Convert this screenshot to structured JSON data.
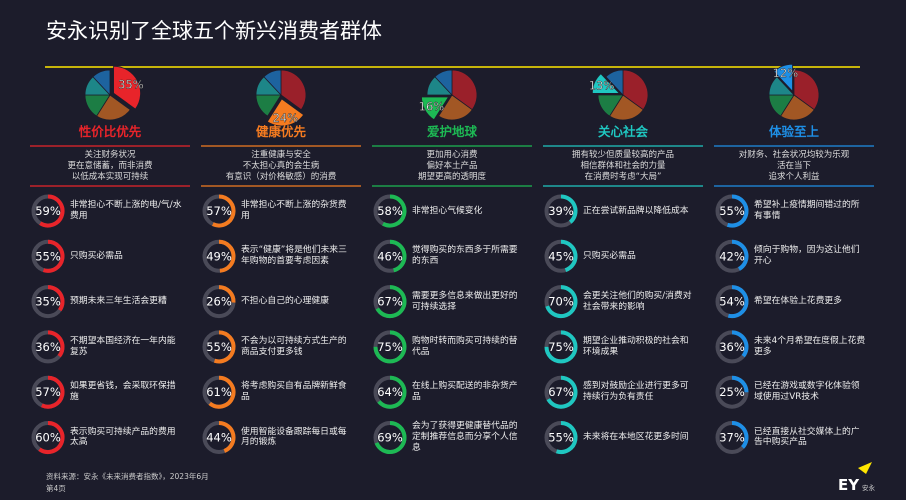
{
  "title": "安永识别了全球五个新兴消费者群体",
  "segments": [
    {
      "value": 35,
      "label": "35%",
      "color": "#e8242a"
    },
    {
      "value": 24,
      "label": "24%",
      "color": "#f47b20"
    },
    {
      "value": 16,
      "label": "16%",
      "color": "#1db954"
    },
    {
      "value": 13,
      "label": "13%",
      "color": "#1fc7c1"
    },
    {
      "value": 12,
      "label": "12%",
      "color": "#1e8fe6"
    }
  ],
  "columns": [
    {
      "name": "性价比优先",
      "description": [
        "关注财务状况",
        "更在意储蓄，而非消费",
        "以低成本实现可持续"
      ],
      "items": [
        {
          "value": 59,
          "label": "59%",
          "text": "非常担心不断上涨的电/气/水费用"
        },
        {
          "value": 55,
          "label": "55%",
          "text": "只购买必需品"
        },
        {
          "value": 35,
          "label": "35%",
          "text": "预期未来三年生活会更糟"
        },
        {
          "value": 36,
          "label": "36%",
          "text": "不期望本国经济在一年内能复苏"
        },
        {
          "value": 57,
          "label": "57%",
          "text": "如果更省钱，会采取环保措施"
        },
        {
          "value": 60,
          "label": "60%",
          "text": "表示购买可持续产品的费用太高"
        }
      ]
    },
    {
      "name": "健康优先",
      "description": [
        "注重健康与安全",
        "不太担心真的会生病",
        "有意识（对价格敏感）的消费"
      ],
      "items": [
        {
          "value": 57,
          "label": "57%",
          "text": "非常担心不断上涨的杂货费用"
        },
        {
          "value": 49,
          "label": "49%",
          "text": "表示“健康”将是他们未来三年购物的首要考虑因素"
        },
        {
          "value": 26,
          "label": "26%",
          "text": "不担心自己的心理健康"
        },
        {
          "value": 55,
          "label": "55%",
          "text": "不会为以可持续方式生产的商品支付更多钱"
        },
        {
          "value": 61,
          "label": "61%",
          "text": "将考虑购买自有品牌新鲜食品"
        },
        {
          "value": 44,
          "label": "44%",
          "text": "使用智能设备跟踪每日或每月的锻炼"
        }
      ]
    },
    {
      "name": "爱护地球",
      "description": [
        "更加用心消费",
        "偏好本土产品",
        "期望更高的透明度"
      ],
      "items": [
        {
          "value": 58,
          "label": "58%",
          "text": "非常担心气候变化"
        },
        {
          "value": 46,
          "label": "46%",
          "text": "觉得购买的东西多于所需要的东西"
        },
        {
          "value": 67,
          "label": "67%",
          "text": "需要更多信息来做出更好的可持续选择"
        },
        {
          "value": 75,
          "label": "75%",
          "text": "购物时转而购买可持续的替代品"
        },
        {
          "value": 64,
          "label": "64%",
          "text": "在线上购买配送的非杂货产品"
        },
        {
          "value": 69,
          "label": "69%",
          "text": "会为了获得更健康替代品的定制推荐信息而分享个人信息"
        }
      ]
    },
    {
      "name": "关心社会",
      "description": [
        "拥有较少但质量较高的产品",
        "相信群体和社会的力量",
        "在消费时考虑“大局”"
      ],
      "items": [
        {
          "value": 39,
          "label": "39%",
          "text": "正在尝试新品牌以降低成本"
        },
        {
          "value": 45,
          "label": "45%",
          "text": "只购买必需品"
        },
        {
          "value": 70,
          "label": "70%",
          "text": "会更关注他们的购买/消费对社会带来的影响"
        },
        {
          "value": 75,
          "label": "75%",
          "text": "期望企业推动积极的社会和环境成果"
        },
        {
          "value": 67,
          "label": "67%",
          "text": "感到对鼓励企业进行更多可持续行为负有责任"
        },
        {
          "value": 55,
          "label": "55%",
          "text": "未来将在本地区花更多时间"
        }
      ]
    },
    {
      "name": "体验至上",
      "description": [
        "对财务、社会状况均较为乐观",
        "活在当下",
        "追求个人利益"
      ],
      "items": [
        {
          "value": 55,
          "label": "55%",
          "text": "希望补上疫情期间错过的所有事情"
        },
        {
          "value": 42,
          "label": "42%",
          "text": "倾向于购物，因为这让他们开心"
        },
        {
          "value": 54,
          "label": "54%",
          "text": "希望在体验上花费更多"
        },
        {
          "value": 36,
          "label": "36%",
          "text": "未来4个月希望在度假上花费更多"
        },
        {
          "value": 25,
          "label": "25%",
          "text": "已经在游戏或数字化体验领域使用过VR技术"
        },
        {
          "value": 37,
          "label": "37%",
          "text": "已经直接从社交媒体上的广告中购买产品"
        }
      ]
    }
  ],
  "footer": {
    "source": "资料来源：安永《未来消费者指数》，2023年6月",
    "page": "第4页"
  },
  "logo": {
    "mark": "EY",
    "text": "安永"
  }
}
